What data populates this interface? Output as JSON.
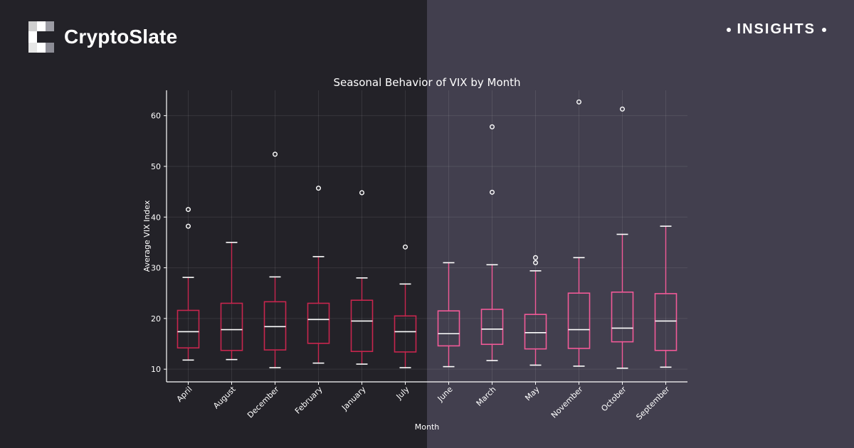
{
  "brand": {
    "name": "CryptoSlate"
  },
  "badge": {
    "label": "INSIGHTS"
  },
  "colors": {
    "box_dark": "#c8264e",
    "box_light": "#f25a98",
    "median": "#ffffff",
    "whisker": "#ffffff",
    "outlier": "#ffffff"
  },
  "chart_data": {
    "type": "boxplot",
    "title": "Seasonal Behavior of VIX by Month",
    "xlabel": "Month",
    "ylabel": "Average VIX Index",
    "ylim": [
      7.5,
      65
    ],
    "yticks": [
      10,
      20,
      30,
      40,
      50,
      60
    ],
    "grid": true,
    "categories": [
      "April",
      "August",
      "December",
      "February",
      "January",
      "July",
      "June",
      "March",
      "May",
      "November",
      "October",
      "September"
    ],
    "boxes": [
      {
        "month": "April",
        "whislo": 11.8,
        "q1": 14.2,
        "med": 17.4,
        "q3": 21.6,
        "whishi": 28.1,
        "fliers": [
          38.2,
          41.5
        ]
      },
      {
        "month": "August",
        "whislo": 11.9,
        "q1": 13.7,
        "med": 17.8,
        "q3": 23.0,
        "whishi": 35.0,
        "fliers": []
      },
      {
        "month": "December",
        "whislo": 10.3,
        "q1": 13.8,
        "med": 18.4,
        "q3": 23.3,
        "whishi": 28.2,
        "fliers": [
          52.4
        ]
      },
      {
        "month": "February",
        "whislo": 11.2,
        "q1": 15.1,
        "med": 19.8,
        "q3": 23.0,
        "whishi": 32.2,
        "fliers": [
          45.7
        ]
      },
      {
        "month": "January",
        "whislo": 11.0,
        "q1": 13.5,
        "med": 19.5,
        "q3": 23.6,
        "whishi": 28.0,
        "fliers": [
          44.8
        ]
      },
      {
        "month": "July",
        "whislo": 10.3,
        "q1": 13.4,
        "med": 17.4,
        "q3": 20.5,
        "whishi": 26.8,
        "fliers": [
          34.1
        ]
      },
      {
        "month": "June",
        "whislo": 10.5,
        "q1": 14.6,
        "med": 17.0,
        "q3": 21.5,
        "whishi": 31.0,
        "fliers": []
      },
      {
        "month": "March",
        "whislo": 11.7,
        "q1": 14.9,
        "med": 17.9,
        "q3": 21.8,
        "whishi": 30.6,
        "fliers": [
          44.9,
          57.8
        ]
      },
      {
        "month": "May",
        "whislo": 10.8,
        "q1": 14.0,
        "med": 17.2,
        "q3": 20.8,
        "whishi": 29.4,
        "fliers": [
          31.0,
          32.0
        ]
      },
      {
        "month": "November",
        "whislo": 10.6,
        "q1": 14.1,
        "med": 17.8,
        "q3": 25.0,
        "whishi": 32.0,
        "fliers": [
          62.7
        ]
      },
      {
        "month": "October",
        "whislo": 10.2,
        "q1": 15.4,
        "med": 18.1,
        "q3": 25.2,
        "whishi": 36.6,
        "fliers": [
          61.3
        ]
      },
      {
        "month": "September",
        "whislo": 10.4,
        "q1": 13.7,
        "med": 19.5,
        "q3": 24.9,
        "whishi": 38.2,
        "fliers": []
      }
    ]
  }
}
